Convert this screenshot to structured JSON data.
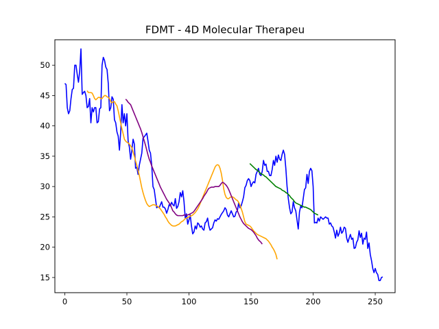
{
  "chart_data": {
    "type": "line",
    "title": "FDMT - 4D Molecular Therapeu",
    "xlabel": "",
    "ylabel": "",
    "xlim": [
      -8,
      266
    ],
    "ylim": [
      12.5,
      54.2
    ],
    "grid": false,
    "x_ticks": [
      0,
      50,
      100,
      150,
      200,
      250
    ],
    "y_ticks": [
      15,
      20,
      25,
      30,
      35,
      40,
      45,
      50
    ],
    "series": [
      {
        "color": "#0000ff",
        "x_start": 0,
        "values": [
          47.0,
          46.8,
          43.0,
          42.0,
          42.5,
          44.5,
          46.0,
          46.2,
          50.0,
          50.0,
          48.5,
          47.2,
          49.0,
          52.7,
          45.2,
          45.5,
          45.7,
          45.0,
          43.0,
          43.2,
          44.5,
          40.5,
          43.0,
          42.3,
          43.0,
          43.0,
          40.5,
          40.7,
          42.8,
          43.0,
          50.0,
          51.3,
          50.8,
          49.7,
          49.3,
          47.0,
          42.5,
          43.0,
          44.8,
          44.4,
          41.0,
          40.5,
          39.0,
          38.3,
          36.0,
          39.0,
          43.5,
          40.5,
          42.0,
          40.0,
          42.0,
          37.5,
          36.5,
          34.5,
          36.0,
          37.8,
          37.0,
          33.0,
          33.2,
          32.0,
          33.5,
          34.5,
          35.5,
          38.0,
          38.2,
          38.5,
          38.8,
          37.5,
          36.0,
          35.5,
          33.5,
          30.0,
          29.5,
          28.0,
          26.5,
          26.7,
          26.5,
          27.0,
          27.5,
          26.6,
          26.6,
          26.3,
          25.6,
          26.2,
          27.0,
          26.8,
          27.4,
          27.0,
          26.8,
          28.0,
          26.4,
          26.7,
          27.5,
          29.0,
          28.3,
          29.3,
          27.5,
          24.8,
          25.5,
          23.8,
          24.5,
          25.3,
          23.5,
          22.2,
          22.5,
          23.5,
          23.0,
          24.0,
          23.8,
          23.3,
          23.5,
          23.0,
          22.8,
          24.0,
          24.2,
          24.8,
          23.5,
          22.8,
          23.0,
          23.2,
          24.0,
          24.5,
          24.3,
          24.7,
          24.6,
          25.0,
          25.4,
          25.7,
          26.0,
          26.5,
          26.2,
          25.3,
          25.0,
          25.5,
          26.0,
          25.5,
          25.0,
          25.1,
          25.8,
          26.0,
          27.3,
          26.5,
          26.8,
          27.5,
          28.3,
          29.8,
          30.2,
          31.0,
          31.3,
          31.0,
          30.0,
          30.5,
          30.8,
          30.6,
          32.0,
          32.5,
          33.0,
          32.0,
          31.8,
          32.5,
          34.3,
          33.5,
          33.7,
          32.5,
          32.5,
          31.8,
          31.8,
          32.8,
          34.3,
          33.5,
          35.0,
          34.0,
          35.2,
          34.5,
          34.3,
          35.3,
          36.0,
          35.3,
          33.0,
          30.0,
          28.0,
          26.5,
          25.5,
          25.8,
          27.5,
          26.5,
          26.0,
          24.5,
          23.0,
          25.8,
          26.8,
          26.5,
          28.0,
          29.5,
          29.8,
          32.0,
          30.5,
          32.5,
          33.0,
          32.6,
          30.0,
          24.0,
          24.1,
          24.0,
          24.8,
          24.3,
          25.0,
          24.8,
          24.6,
          24.8,
          25.0,
          24.8,
          24.8,
          23.8,
          24.0,
          23.5,
          23.3,
          22.5,
          21.5,
          22.8,
          21.8,
          22.3,
          23.3,
          22.3,
          22.6,
          23.3,
          23.1,
          21.5,
          20.8,
          21.5,
          22.1,
          21.3,
          21.5,
          19.8,
          19.9,
          20.8,
          21.2,
          22.7,
          21.6,
          22.3,
          20.5,
          21.5,
          21.3,
          22.5,
          19.8,
          20.7,
          18.8,
          17.8,
          16.5,
          15.8,
          16.5,
          15.8,
          15.5,
          14.5,
          14.5,
          15.0,
          15.1
        ]
      },
      {
        "color": "#ffa500",
        "x_start": 18,
        "values": [
          45.8,
          45.5,
          45.5,
          45.5,
          45.4,
          45.0,
          44.5,
          44.3,
          44.5,
          44.7,
          44.7,
          44.5,
          44.5,
          44.8,
          45.0,
          45.0,
          44.8,
          44.7,
          44.5,
          44.0,
          43.8,
          44.0,
          44.0,
          43.6,
          43.3,
          42.5,
          41.5,
          40.5,
          39.5,
          38.7,
          37.8,
          37.5,
          37.3,
          37.2,
          37.0,
          36.7,
          36.4,
          35.7,
          35.0,
          34.2,
          33.5,
          32.7,
          31.8,
          30.8,
          29.8,
          29.0,
          28.3,
          27.7,
          27.2,
          26.9,
          26.7,
          26.8,
          26.9,
          27.0,
          27.0,
          26.9,
          26.8,
          26.7,
          26.5,
          26.3,
          26.0,
          25.7,
          25.4,
          25.0,
          24.7,
          24.3,
          24.0,
          23.8,
          23.6,
          23.5,
          23.5,
          23.5,
          23.6,
          23.7,
          23.8,
          24.0,
          24.2,
          24.3,
          24.5,
          24.7,
          24.8,
          24.9,
          25.0,
          25.1,
          25.2,
          25.3,
          25.5,
          25.7,
          26.0,
          26.3,
          26.7,
          27.2,
          27.7,
          28.2,
          28.7,
          29.2,
          29.7,
          30.2,
          30.7,
          31.2,
          31.7,
          32.2,
          32.7,
          33.2,
          33.5,
          33.6,
          33.5,
          33.0,
          32.2,
          31.0,
          29.6,
          28.7,
          28.2,
          28.0,
          28.0,
          28.2,
          28.3,
          28.3,
          28.2,
          28.0,
          27.8,
          27.7,
          27.4,
          27.0,
          26.4,
          25.8,
          25.0,
          24.2,
          23.8,
          23.7,
          23.6,
          23.5,
          23.3,
          23.0,
          22.7,
          22.5,
          22.3,
          22.1,
          22.0,
          21.9,
          21.8,
          21.7,
          21.6,
          21.5,
          21.4,
          21.2,
          21.0,
          20.7,
          20.4,
          20.0,
          19.7,
          19.3,
          18.8,
          18.0
        ]
      },
      {
        "color": "#800080",
        "x_start": 49,
        "values": [
          44.4,
          44.2,
          43.9,
          43.7,
          43.5,
          43.0,
          42.5,
          42.0,
          41.5,
          41.0,
          40.5,
          40.0,
          39.5,
          38.9,
          38.2,
          37.5,
          36.8,
          36.0,
          35.2,
          34.5,
          34.0,
          33.4,
          32.9,
          32.4,
          31.9,
          31.4,
          30.9,
          30.4,
          29.9,
          29.5,
          29.1,
          28.7,
          28.3,
          27.9,
          27.6,
          27.3,
          27.0,
          26.5,
          26.0,
          25.8,
          25.5,
          25.3,
          25.2,
          25.2,
          25.2,
          25.2,
          25.2,
          25.3,
          25.3,
          25.3,
          25.3,
          25.4,
          25.5,
          25.6,
          25.7,
          25.9,
          26.2,
          26.5,
          26.8,
          27.1,
          27.4,
          27.7,
          28.0,
          28.4,
          28.7,
          29.0,
          29.4,
          29.7,
          29.8,
          29.9,
          29.9,
          29.9,
          30.0,
          30.0,
          30.0,
          30.0,
          30.2,
          30.5,
          30.7,
          30.6,
          30.4,
          30.2,
          29.9,
          29.5,
          29.0,
          28.5,
          28.0,
          27.5,
          27.0,
          26.5,
          26.0,
          25.5,
          25.0,
          24.6,
          24.2,
          23.9,
          23.7,
          23.5,
          23.3,
          23.1,
          23.0,
          22.9,
          22.7,
          22.5,
          22.2,
          21.9,
          21.5,
          21.2,
          21.0,
          20.8,
          20.5
        ]
      },
      {
        "color": "#008000",
        "x_start": 149,
        "values": [
          33.8,
          33.6,
          33.4,
          33.2,
          33.0,
          32.8,
          32.7,
          32.5,
          32.3,
          32.1,
          32.0,
          31.9,
          31.7,
          31.6,
          31.4,
          31.2,
          31.0,
          30.8,
          30.6,
          30.4,
          30.2,
          30.0,
          29.9,
          29.8,
          29.7,
          29.6,
          29.4,
          29.3,
          29.2,
          29.0,
          28.9,
          28.7,
          28.5,
          28.2,
          28.0,
          27.8,
          27.5,
          27.3,
          27.2,
          27.1,
          27.0,
          26.9,
          26.8,
          26.7,
          26.6,
          26.6,
          26.5,
          26.4,
          26.3,
          26.2,
          26.0,
          25.8,
          25.6,
          25.5,
          25.4,
          25.3
        ]
      }
    ]
  }
}
